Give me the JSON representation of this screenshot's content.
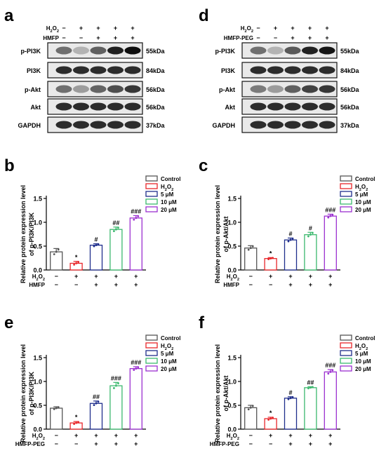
{
  "panel_letters": [
    "a",
    "d",
    "b",
    "c",
    "e",
    "f"
  ],
  "blot_a": {
    "treatments": [
      {
        "name": "H2O2",
        "signs": [
          "−",
          "+",
          "+",
          "+",
          "+"
        ]
      },
      {
        "name": "HMFP",
        "signs": [
          "−",
          "−",
          "+",
          "+",
          "+"
        ]
      }
    ],
    "rows": [
      {
        "protein": "p-PI3K",
        "kda": "55kDa",
        "intensity": [
          0.55,
          0.25,
          0.62,
          0.9,
          0.98
        ]
      },
      {
        "protein": "PI3K",
        "kda": "84kDa",
        "intensity": [
          0.85,
          0.85,
          0.85,
          0.85,
          0.85
        ]
      },
      {
        "protein": "p-Akt",
        "kda": "56kDa",
        "intensity": [
          0.55,
          0.35,
          0.6,
          0.7,
          0.8
        ]
      },
      {
        "protein": "Akt",
        "kda": "56kDa",
        "intensity": [
          0.85,
          0.85,
          0.85,
          0.85,
          0.85
        ]
      },
      {
        "protein": "GAPDH",
        "kda": "37kDa",
        "intensity": [
          0.85,
          0.85,
          0.85,
          0.85,
          0.85
        ]
      }
    ]
  },
  "blot_d": {
    "treatments": [
      {
        "name": "H2O2",
        "signs": [
          "−",
          "+",
          "+",
          "+",
          "+"
        ]
      },
      {
        "name": "HMFP-PEG",
        "signs": [
          "−",
          "−",
          "+",
          "+",
          "+"
        ]
      }
    ],
    "rows": [
      {
        "protein": "p-PI3K",
        "kda": "55kDa",
        "intensity": [
          0.55,
          0.25,
          0.65,
          0.9,
          0.95
        ]
      },
      {
        "protein": "PI3K",
        "kda": "84kDa",
        "intensity": [
          0.85,
          0.85,
          0.85,
          0.85,
          0.85
        ]
      },
      {
        "protein": "p-Akt",
        "kda": "56kDa",
        "intensity": [
          0.5,
          0.35,
          0.62,
          0.75,
          0.8
        ]
      },
      {
        "protein": "Akt",
        "kda": "56kDa",
        "intensity": [
          0.85,
          0.85,
          0.85,
          0.85,
          0.85
        ]
      },
      {
        "protein": "GAPDH",
        "kda": "37kDa",
        "intensity": [
          0.85,
          0.85,
          0.85,
          0.85,
          0.85
        ]
      }
    ]
  },
  "legend": {
    "entries": [
      "Control",
      "H2O2",
      "5 μM",
      "10 μM",
      "20 μM"
    ],
    "colors": [
      "#555555",
      "#e8262a",
      "#1f2e8c",
      "#3cb96e",
      "#9b2fd0"
    ]
  },
  "chart_data": [
    {
      "panel": "b",
      "type": "bar",
      "ylabel_lines": [
        "Relative protein expression level",
        "of p-PI3K/PI3K"
      ],
      "ylim": [
        0,
        1.5
      ],
      "yticks": [
        "0.0",
        "0.5",
        "1.0",
        "1.5"
      ],
      "categories": [
        "Control",
        "H2O2",
        "5 μM",
        "10 μM",
        "20 μM"
      ],
      "values": [
        0.38,
        0.14,
        0.52,
        0.85,
        1.09
      ],
      "errors": [
        0.07,
        0.04,
        0.03,
        0.05,
        0.05
      ],
      "significance": [
        "",
        "*",
        "#",
        "##",
        "###"
      ],
      "treatments": [
        {
          "name": "H2O2",
          "signs": [
            "−",
            "+",
            "+",
            "+",
            "+"
          ]
        },
        {
          "name": "HMFP",
          "signs": [
            "−",
            "−",
            "+",
            "+",
            "+"
          ]
        }
      ]
    },
    {
      "panel": "c",
      "type": "bar",
      "ylabel_lines": [
        "Relative protein expression level",
        "of p-Akt/Akt"
      ],
      "ylim": [
        0,
        1.5
      ],
      "yticks": [
        "0.0",
        "0.5",
        "1.0",
        "1.5"
      ],
      "categories": [
        "Control",
        "H2O2",
        "5 μM",
        "10 μM",
        "20 μM"
      ],
      "values": [
        0.46,
        0.24,
        0.63,
        0.74,
        1.13
      ],
      "errors": [
        0.05,
        0.02,
        0.04,
        0.05,
        0.04
      ],
      "significance": [
        "",
        "*",
        "#",
        "#",
        "###"
      ],
      "treatments": [
        {
          "name": "H2O2",
          "signs": [
            "−",
            "+",
            "+",
            "+",
            "+"
          ]
        },
        {
          "name": "HMFP",
          "signs": [
            "−",
            "−",
            "+",
            "+",
            "+"
          ]
        }
      ]
    },
    {
      "panel": "e",
      "type": "bar",
      "ylabel_lines": [
        "Relative protein expression level",
        "of p-PI3K/PI3K"
      ],
      "ylim": [
        0,
        1.5
      ],
      "yticks": [
        "0.0",
        "0.5",
        "1.0",
        "1.5"
      ],
      "categories": [
        "Control",
        "H2O2",
        "5 μM",
        "10 μM",
        "20 μM"
      ],
      "values": [
        0.44,
        0.13,
        0.54,
        0.91,
        1.27
      ],
      "errors": [
        0.03,
        0.03,
        0.05,
        0.07,
        0.04
      ],
      "significance": [
        "",
        "*",
        "##",
        "###",
        "###"
      ],
      "treatments": [
        {
          "name": "H2O2",
          "signs": [
            "−",
            "+",
            "+",
            "+",
            "+"
          ]
        },
        {
          "name": "HMFP-PEG",
          "signs": [
            "−",
            "−",
            "+",
            "+",
            "+"
          ]
        }
      ]
    },
    {
      "panel": "f",
      "type": "bar",
      "ylabel_lines": [
        "Relative protein expression level",
        "of p-Akt/Akt"
      ],
      "ylim": [
        0,
        1.5
      ],
      "yticks": [
        "0.0",
        "0.5",
        "1.0",
        "1.5"
      ],
      "categories": [
        "Control",
        "H2O2",
        "5 μM",
        "10 μM",
        "20 μM"
      ],
      "values": [
        0.45,
        0.22,
        0.65,
        0.87,
        1.2
      ],
      "errors": [
        0.05,
        0.03,
        0.03,
        0.02,
        0.05
      ],
      "significance": [
        "",
        "*",
        "#",
        "##",
        "###"
      ],
      "treatments": [
        {
          "name": "H2O2",
          "signs": [
            "−",
            "+",
            "+",
            "+",
            "+"
          ]
        },
        {
          "name": "HMFP-PEG",
          "signs": [
            "−",
            "−",
            "+",
            "+",
            "+"
          ]
        }
      ]
    }
  ]
}
